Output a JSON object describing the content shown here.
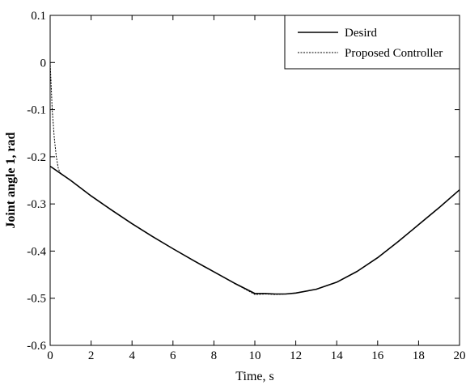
{
  "chart_data": {
    "type": "line",
    "title": "",
    "xlabel": "Time, s",
    "ylabel": "Joint angle 1, rad",
    "xlim": [
      0,
      20
    ],
    "ylim": [
      -0.6,
      0.1
    ],
    "xticks": [
      0,
      2,
      4,
      6,
      8,
      10,
      12,
      14,
      16,
      18,
      20
    ],
    "yticks": [
      0.1,
      0,
      -0.1,
      -0.2,
      -0.3,
      -0.4,
      -0.5,
      -0.6
    ],
    "xtick_labels": [
      "0",
      "2",
      "4",
      "6",
      "8",
      "10",
      "12",
      "14",
      "16",
      "18",
      "20"
    ],
    "ytick_labels": [
      "0.1",
      "0",
      "-0.1",
      "-0.2",
      "-0.3",
      "-0.4",
      "-0.5",
      "-0.6"
    ],
    "grid": false,
    "legend_position": "top-right",
    "series": [
      {
        "name": "Desird",
        "style": "solid",
        "color": "#000000",
        "x": [
          0,
          0.5,
          1,
          2,
          3,
          4,
          5,
          6,
          7,
          8,
          9,
          10,
          10.5,
          11,
          11.5,
          12,
          13,
          14,
          15,
          16,
          17,
          18,
          19,
          20
        ],
        "y": [
          -0.22,
          -0.235,
          -0.25,
          -0.283,
          -0.313,
          -0.342,
          -0.369,
          -0.395,
          -0.42,
          -0.444,
          -0.468,
          -0.49,
          -0.49,
          -0.491,
          -0.491,
          -0.489,
          -0.481,
          -0.466,
          -0.443,
          -0.414,
          -0.38,
          -0.344,
          -0.308,
          -0.27
        ]
      },
      {
        "name": "Proposed Controller",
        "style": "dashed",
        "color": "#000000",
        "x": [
          0,
          0.05,
          0.1,
          0.2,
          0.3,
          0.4,
          0.5,
          1,
          2,
          3,
          4,
          5,
          6,
          7,
          8,
          9,
          10,
          10.5,
          11,
          11.5,
          12,
          13,
          14,
          15,
          16,
          17,
          18,
          19,
          20
        ],
        "y": [
          0.0,
          -0.05,
          -0.1,
          -0.16,
          -0.2,
          -0.225,
          -0.235,
          -0.25,
          -0.283,
          -0.313,
          -0.342,
          -0.369,
          -0.395,
          -0.42,
          -0.444,
          -0.468,
          -0.492,
          -0.491,
          -0.492,
          -0.491,
          -0.489,
          -0.481,
          -0.466,
          -0.443,
          -0.414,
          -0.38,
          -0.344,
          -0.308,
          -0.27
        ]
      }
    ]
  },
  "colors": {
    "axis": "#000000",
    "background": "#ffffff"
  }
}
